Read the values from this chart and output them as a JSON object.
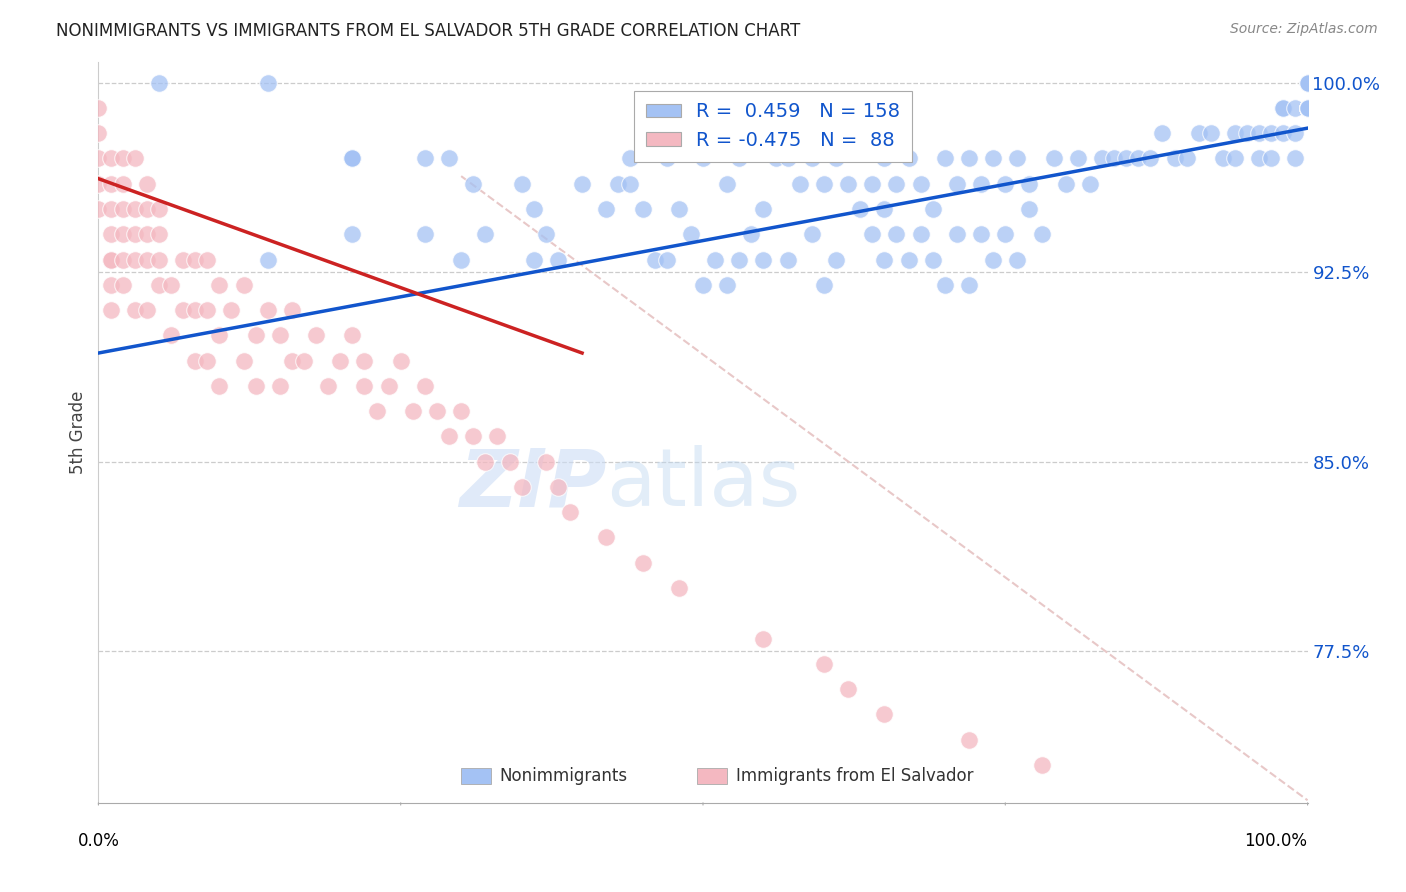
{
  "title": "NONIMMIGRANTS VS IMMIGRANTS FROM EL SALVADOR 5TH GRADE CORRELATION CHART",
  "source": "Source: ZipAtlas.com",
  "ylabel": "5th Grade",
  "xlim": [
    0.0,
    1.0
  ],
  "ylim": [
    0.715,
    1.008
  ],
  "yticks": [
    0.775,
    0.85,
    0.925,
    1.0
  ],
  "ytick_labels": [
    "77.5%",
    "85.0%",
    "92.5%",
    "100.0%"
  ],
  "blue_R": 0.459,
  "blue_N": 158,
  "pink_R": -0.475,
  "pink_N": 88,
  "blue_color": "#a4c2f4",
  "pink_color": "#f4b8c1",
  "blue_line_color": "#1155cc",
  "pink_line_color": "#cc2222",
  "diag_line_color": "#e8c8c8",
  "legend_label_blue": "Nonimmigrants",
  "legend_label_pink": "Immigrants from El Salvador",
  "blue_trend_x": [
    0.0,
    1.0
  ],
  "blue_trend_y": [
    0.893,
    0.982
  ],
  "pink_trend_x": [
    0.0,
    0.4
  ],
  "pink_trend_y": [
    0.962,
    0.893
  ],
  "diag_line_x": [
    0.3,
    1.0
  ],
  "diag_line_y": [
    0.963,
    0.716
  ],
  "blue_scatter_x": [
    0.05,
    0.14,
    0.14,
    0.21,
    0.21,
    0.21,
    0.21,
    0.27,
    0.27,
    0.29,
    0.3,
    0.31,
    0.32,
    0.35,
    0.36,
    0.36,
    0.37,
    0.38,
    0.4,
    0.42,
    0.43,
    0.44,
    0.44,
    0.45,
    0.46,
    0.47,
    0.47,
    0.48,
    0.49,
    0.5,
    0.5,
    0.51,
    0.52,
    0.52,
    0.53,
    0.53,
    0.54,
    0.55,
    0.55,
    0.56,
    0.57,
    0.57,
    0.58,
    0.59,
    0.59,
    0.6,
    0.6,
    0.61,
    0.61,
    0.62,
    0.63,
    0.64,
    0.64,
    0.65,
    0.65,
    0.65,
    0.66,
    0.66,
    0.67,
    0.67,
    0.68,
    0.68,
    0.69,
    0.69,
    0.7,
    0.7,
    0.71,
    0.71,
    0.72,
    0.72,
    0.73,
    0.73,
    0.74,
    0.74,
    0.75,
    0.75,
    0.76,
    0.76,
    0.77,
    0.77,
    0.78,
    0.79,
    0.8,
    0.81,
    0.82,
    0.83,
    0.84,
    0.85,
    0.86,
    0.87,
    0.88,
    0.89,
    0.9,
    0.91,
    0.92,
    0.93,
    0.94,
    0.94,
    0.95,
    0.96,
    0.96,
    0.97,
    0.97,
    0.98,
    0.98,
    0.98,
    0.99,
    0.99,
    0.99,
    1.0,
    1.0,
    1.0,
    1.0,
    1.0,
    1.0,
    1.0,
    1.0,
    1.0,
    1.0,
    1.0,
    1.0,
    1.0,
    1.0,
    1.0,
    1.0,
    1.0,
    1.0,
    1.0,
    1.0,
    1.0,
    1.0,
    1.0,
    1.0,
    1.0,
    1.0,
    1.0,
    1.0,
    1.0,
    1.0,
    1.0,
    1.0,
    1.0,
    1.0,
    1.0,
    1.0,
    1.0,
    1.0,
    1.0,
    1.0,
    1.0,
    1.0,
    1.0,
    1.0,
    1.0,
    1.0,
    1.0,
    1.0,
    1.0,
    1.0,
    1.0
  ],
  "blue_scatter_y": [
    1.0,
    1.0,
    0.93,
    0.97,
    0.97,
    0.97,
    0.94,
    0.97,
    0.94,
    0.97,
    0.93,
    0.96,
    0.94,
    0.96,
    0.95,
    0.93,
    0.94,
    0.93,
    0.96,
    0.95,
    0.96,
    0.97,
    0.96,
    0.95,
    0.93,
    0.97,
    0.93,
    0.95,
    0.94,
    0.97,
    0.92,
    0.93,
    0.96,
    0.92,
    0.97,
    0.93,
    0.94,
    0.95,
    0.93,
    0.97,
    0.93,
    0.97,
    0.96,
    0.94,
    0.97,
    0.92,
    0.96,
    0.93,
    0.97,
    0.96,
    0.95,
    0.94,
    0.96,
    0.97,
    0.93,
    0.95,
    0.94,
    0.96,
    0.93,
    0.97,
    0.94,
    0.96,
    0.93,
    0.95,
    0.97,
    0.92,
    0.94,
    0.96,
    0.97,
    0.92,
    0.96,
    0.94,
    0.93,
    0.97,
    0.94,
    0.96,
    0.97,
    0.93,
    0.95,
    0.96,
    0.94,
    0.97,
    0.96,
    0.97,
    0.96,
    0.97,
    0.97,
    0.97,
    0.97,
    0.97,
    0.98,
    0.97,
    0.97,
    0.98,
    0.98,
    0.97,
    0.98,
    0.97,
    0.98,
    0.98,
    0.97,
    0.98,
    0.97,
    0.99,
    0.98,
    0.99,
    0.98,
    0.99,
    0.97,
    0.99,
    0.99,
    0.99,
    0.99,
    0.99,
    0.99,
    0.99,
    0.99,
    1.0,
    1.0,
    1.0,
    1.0,
    1.0,
    1.0,
    1.0,
    1.0,
    1.0,
    1.0,
    1.0,
    1.0,
    1.0,
    1.0,
    1.0,
    1.0,
    1.0,
    1.0,
    1.0,
    1.0,
    1.0,
    1.0,
    1.0,
    1.0,
    1.0,
    1.0,
    1.0,
    1.0,
    1.0,
    1.0,
    1.0,
    1.0,
    1.0,
    1.0,
    1.0,
    1.0,
    1.0,
    1.0,
    1.0,
    1.0,
    1.0,
    1.0,
    1.0
  ],
  "pink_scatter_x": [
    0.0,
    0.0,
    0.0,
    0.0,
    0.0,
    0.01,
    0.01,
    0.01,
    0.01,
    0.01,
    0.01,
    0.01,
    0.01,
    0.02,
    0.02,
    0.02,
    0.02,
    0.02,
    0.02,
    0.03,
    0.03,
    0.03,
    0.03,
    0.03,
    0.04,
    0.04,
    0.04,
    0.04,
    0.04,
    0.05,
    0.05,
    0.05,
    0.05,
    0.06,
    0.06,
    0.07,
    0.07,
    0.08,
    0.08,
    0.08,
    0.09,
    0.09,
    0.09,
    0.1,
    0.1,
    0.1,
    0.11,
    0.12,
    0.12,
    0.13,
    0.13,
    0.14,
    0.15,
    0.15,
    0.16,
    0.16,
    0.17,
    0.18,
    0.19,
    0.2,
    0.21,
    0.22,
    0.22,
    0.23,
    0.24,
    0.25,
    0.26,
    0.27,
    0.28,
    0.29,
    0.3,
    0.31,
    0.32,
    0.33,
    0.34,
    0.35,
    0.37,
    0.38,
    0.39,
    0.42,
    0.45,
    0.48,
    0.55,
    0.6,
    0.62,
    0.65,
    0.72,
    0.78
  ],
  "pink_scatter_y": [
    0.95,
    0.97,
    0.96,
    0.98,
    0.99,
    0.95,
    0.96,
    0.97,
    0.93,
    0.94,
    0.92,
    0.91,
    0.93,
    0.96,
    0.94,
    0.97,
    0.93,
    0.95,
    0.92,
    0.94,
    0.97,
    0.93,
    0.95,
    0.91,
    0.95,
    0.93,
    0.96,
    0.94,
    0.91,
    0.93,
    0.95,
    0.92,
    0.94,
    0.92,
    0.9,
    0.93,
    0.91,
    0.93,
    0.91,
    0.89,
    0.91,
    0.93,
    0.89,
    0.92,
    0.9,
    0.88,
    0.91,
    0.92,
    0.89,
    0.9,
    0.88,
    0.91,
    0.9,
    0.88,
    0.89,
    0.91,
    0.89,
    0.9,
    0.88,
    0.89,
    0.9,
    0.88,
    0.89,
    0.87,
    0.88,
    0.89,
    0.87,
    0.88,
    0.87,
    0.86,
    0.87,
    0.86,
    0.85,
    0.86,
    0.85,
    0.84,
    0.85,
    0.84,
    0.83,
    0.82,
    0.81,
    0.8,
    0.78,
    0.77,
    0.76,
    0.75,
    0.74,
    0.73
  ]
}
